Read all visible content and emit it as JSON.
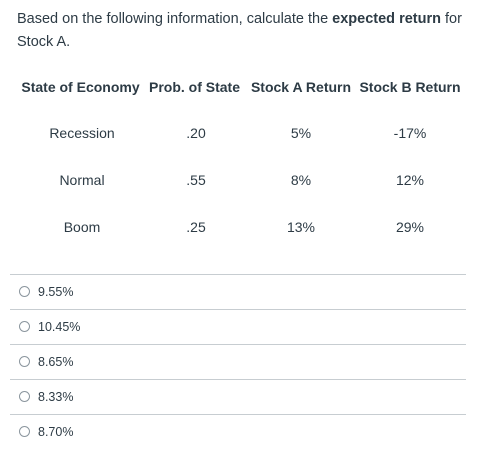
{
  "question": {
    "prefix": "Based on the following information, calculate the ",
    "bold": "expected return",
    "suffix": " for Stock A."
  },
  "table": {
    "headers": [
      "State of Economy",
      "Prob. of State",
      "Stock A Return",
      "Stock B Return"
    ],
    "rows": [
      [
        "Recession",
        ".20",
        "5%",
        "-17%"
      ],
      [
        "Normal",
        ".55",
        "8%",
        "12%"
      ],
      [
        "Boom",
        ".25",
        "13%",
        "29%"
      ]
    ]
  },
  "answers": [
    {
      "label": "9.55%",
      "selected": false
    },
    {
      "label": "10.45%",
      "selected": false
    },
    {
      "label": "8.65%",
      "selected": false
    },
    {
      "label": "8.33%",
      "selected": false
    },
    {
      "label": "8.70%",
      "selected": false
    }
  ]
}
